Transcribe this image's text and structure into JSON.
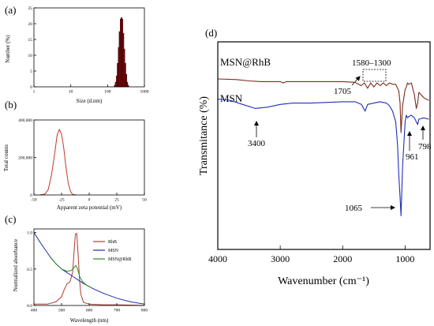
{
  "panels": {
    "a": {
      "letter": "(a)",
      "ylabel": "Number (%)",
      "xlabel": "Size (d.nm)"
    },
    "b": {
      "letter": "(b)",
      "ylabel": "Total counts",
      "xlabel": "Apparent zeta potential (mV)"
    },
    "c": {
      "letter": "(c)",
      "ylabel": "Normalized absorbance",
      "xlabel": "Wavelength (nm)"
    },
    "d": {
      "letter": "(d)",
      "ylabel": "Transmitance (%)",
      "xlabel": "Wavenumber (cm⁻¹)"
    }
  },
  "annotations_d": {
    "msn_rhb": "MSN@RhB",
    "msn": "MSN",
    "region": "1580–1300",
    "p1705": "1705",
    "p3400": "3400",
    "p1065": "1065",
    "p961": "961",
    "p798": "798"
  },
  "chart_data": [
    {
      "panel": "a",
      "type": "bar",
      "title": "",
      "xlabel": "Size (d.nm)",
      "ylabel": "Number (%)",
      "xscale": "log",
      "xlim": [
        1,
        1000
      ],
      "ylim": [
        0,
        25
      ],
      "xticks": [
        1,
        10,
        100,
        1000
      ],
      "xtick_labels": [
        "1",
        "10",
        "100",
        "1000"
      ],
      "yticks": [
        0,
        5,
        10,
        15,
        20,
        25
      ],
      "ytick_labels": [
        "0",
        "5",
        "10",
        "15",
        "20",
        "25"
      ],
      "color": "#8b0000",
      "categories": [
        155,
        165,
        176,
        187,
        199,
        211,
        225,
        239,
        254,
        270,
        287,
        305,
        325,
        345,
        367
      ],
      "values": [
        0.5,
        1.5,
        3.5,
        7.5,
        12.5,
        17.5,
        21.5,
        22,
        21.5,
        17,
        12,
        7.5,
        4,
        1.5,
        0.5
      ]
    },
    {
      "panel": "b",
      "type": "line",
      "title": "",
      "xlabel": "Apparent zeta potential (mV)",
      "ylabel": "Total counts",
      "xlim": [
        -50,
        50
      ],
      "ylim": [
        0,
        400000
      ],
      "xticks": [
        -50,
        -25,
        0,
        25,
        50
      ],
      "xtick_labels": [
        "-50",
        "-25",
        "0",
        "25",
        "50"
      ],
      "yticks": [
        0,
        200000,
        400000
      ],
      "ytick_labels": [
        "0",
        "200,000",
        "400,000"
      ],
      "series": [
        {
          "color": "#c0392b",
          "x": [
            -45,
            -40,
            -37,
            -34,
            -31,
            -29,
            -27,
            -25,
            -23,
            -21,
            -19,
            -17,
            -15,
            -12
          ],
          "y": [
            0,
            5000,
            30000,
            110000,
            230000,
            320000,
            350000,
            325000,
            250000,
            150000,
            65000,
            20000,
            3000,
            0
          ]
        }
      ]
    },
    {
      "panel": "c",
      "type": "line",
      "title": "",
      "xlabel": "Wavelength (nm)",
      "ylabel": "Normalized absorbance",
      "xlim": [
        400,
        800
      ],
      "ylim": [
        0,
        1.05
      ],
      "xticks": [
        400,
        500,
        600,
        700,
        800
      ],
      "xtick_labels": [
        "400",
        "500",
        "600",
        "700",
        "800"
      ],
      "yticks": [
        0,
        0.5,
        1.0
      ],
      "ytick_labels": [
        "0.0",
        "0.5",
        "1.0"
      ],
      "legend_position": "right",
      "series": [
        {
          "name": "RhB",
          "color": "#b03a2e",
          "x": [
            400,
            450,
            480,
            500,
            510,
            520,
            530,
            540,
            545,
            550,
            555,
            560,
            565,
            570,
            580,
            600,
            650,
            700,
            800
          ],
          "y": [
            0.02,
            0.02,
            0.05,
            0.12,
            0.22,
            0.3,
            0.32,
            0.45,
            0.72,
            0.98,
            0.99,
            0.7,
            0.35,
            0.15,
            0.04,
            0.02,
            0.01,
            0.01,
            0.0
          ]
        },
        {
          "name": "MSN",
          "color": "#1f2fa8",
          "x": [
            400,
            420,
            440,
            460,
            480,
            500,
            520,
            540,
            560,
            580,
            600,
            620,
            650,
            700,
            750,
            800
          ],
          "y": [
            1.0,
            0.88,
            0.77,
            0.66,
            0.57,
            0.5,
            0.45,
            0.4,
            0.35,
            0.3,
            0.26,
            0.22,
            0.17,
            0.1,
            0.05,
            0.02
          ]
        },
        {
          "name": "MSN@RhB",
          "color": "#2e8b22",
          "x": [
            460,
            480,
            500,
            520,
            535,
            545,
            552,
            558,
            565,
            575,
            590,
            610
          ],
          "y": [
            0.66,
            0.57,
            0.5,
            0.47,
            0.48,
            0.52,
            0.55,
            0.5,
            0.4,
            0.33,
            0.28,
            0.24
          ]
        }
      ]
    },
    {
      "panel": "d",
      "type": "line",
      "title": "",
      "xlabel": "Wavenumber (cm⁻¹)",
      "ylabel": "Transmitance (%)",
      "xlim": [
        4000,
        600
      ],
      "xticks": [
        4000,
        3000,
        2000,
        1000
      ],
      "xtick_labels": [
        "4000",
        "3000",
        "2000",
        "1000"
      ],
      "series": [
        {
          "name": "MSN@RhB",
          "color": "#7a2a1a",
          "x": [
            4000,
            3700,
            3500,
            3300,
            3000,
            2950,
            2900,
            2500,
            2000,
            1800,
            1705,
            1650,
            1600,
            1550,
            1500,
            1450,
            1400,
            1350,
            1300,
            1250,
            1200,
            1150,
            1100,
            1080,
            1065,
            1040,
            1000,
            980,
            961,
            940,
            900,
            850,
            820,
            798,
            780,
            700,
            620
          ],
          "y": [
            10,
            10.5,
            11.5,
            12,
            12,
            13,
            12,
            12,
            12,
            12.5,
            15,
            13,
            17,
            13,
            16,
            13,
            15,
            13,
            15,
            13,
            14,
            14,
            19,
            28,
            50,
            30,
            18,
            16,
            13,
            14,
            13,
            22,
            32,
            28,
            20,
            24,
            26
          ]
        },
        {
          "name": "MSN",
          "color": "#1f2fb8",
          "x": [
            4000,
            3800,
            3600,
            3400,
            3200,
            3000,
            2800,
            2500,
            2000,
            1800,
            1700,
            1640,
            1600,
            1500,
            1400,
            1300,
            1250,
            1200,
            1150,
            1120,
            1100,
            1080,
            1065,
            1040,
            1000,
            980,
            961,
            940,
            900,
            850,
            820,
            798,
            780,
            700,
            620
          ],
          "y": [
            25,
            26,
            29,
            32,
            31,
            29,
            28,
            28,
            27,
            27,
            29,
            34,
            29,
            28,
            27,
            28,
            30,
            34,
            42,
            60,
            82,
            98,
            112,
            75,
            42,
            37,
            39,
            38,
            37,
            39,
            42,
            44,
            40,
            39,
            40
          ]
        }
      ]
    }
  ]
}
